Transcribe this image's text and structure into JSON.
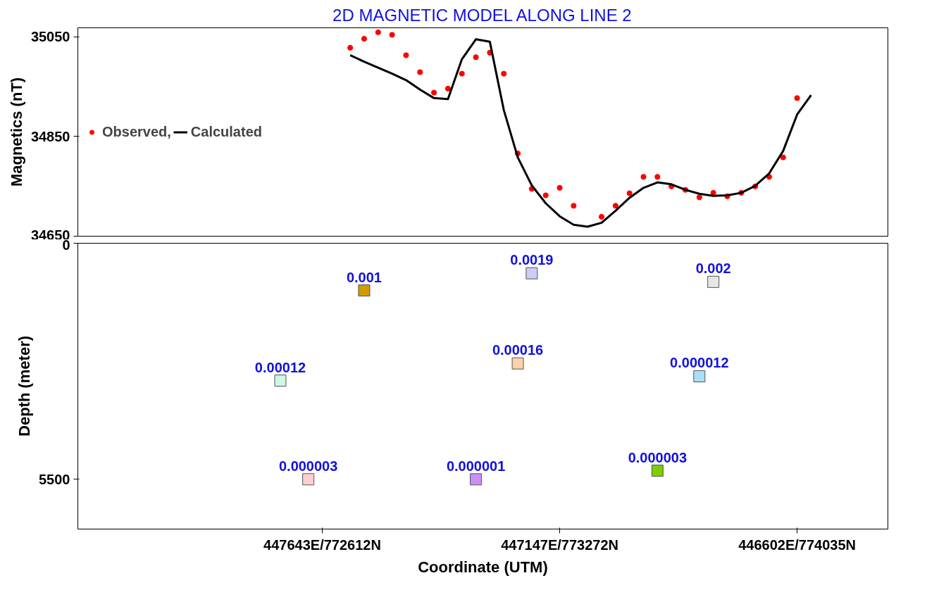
{
  "chart_data": [
    {
      "type": "scatter",
      "title": "2D MAGNETIC MODEL ALONG LINE 2",
      "ylabel": "Magnetics (nT)",
      "ylim": [
        34650,
        35068
      ],
      "yticks": [
        34650,
        34850,
        35050
      ],
      "tick_labels": "y",
      "legend": "left",
      "grid": false,
      "categories": [
        null,
        null,
        null,
        null,
        null,
        null,
        null,
        null,
        null,
        null,
        null,
        null,
        null,
        null,
        null,
        null,
        null,
        null,
        null,
        null,
        null,
        null,
        null,
        null,
        null,
        null,
        null,
        null,
        null,
        null,
        null,
        null,
        null,
        null,
        null,
        null,
        null,
        null,
        null,
        null,
        null,
        null,
        null,
        null,
        null,
        null,
        null,
        null,
        null,
        null,
        null,
        null,
        null,
        null,
        null,
        null,
        null,
        null
      ],
      "series": [
        {
          "name": "Observed,",
          "type": "scatter",
          "color": "#ff0000",
          "marker": "circle",
          "values": [
            null,
            null,
            null,
            null,
            null,
            null,
            null,
            null,
            null,
            null,
            null,
            null,
            null,
            null,
            null,
            null,
            null,
            null,
            null,
            35028,
            35046,
            35059,
            35054,
            35013,
            34979,
            34938,
            34946,
            34976,
            35009,
            35018,
            34976,
            34816,
            34745,
            34732,
            34747,
            34711,
            null,
            34689,
            34711,
            34736,
            34769,
            34769,
            34750,
            34743,
            34728,
            34737,
            34730,
            34737,
            34750,
            34769,
            34808,
            34927,
            null,
            null,
            null,
            null,
            null,
            null
          ]
        },
        {
          "name": "Calculated",
          "type": "line",
          "color": "#000000",
          "values": [
            null,
            null,
            null,
            null,
            null,
            null,
            null,
            null,
            null,
            null,
            null,
            null,
            null,
            null,
            null,
            null,
            null,
            null,
            null,
            35013,
            35000,
            34988,
            34976,
            34963,
            34944,
            34927,
            34925,
            35005,
            35045,
            35040,
            34903,
            34808,
            34752,
            34716,
            34690,
            34673,
            34669,
            34677,
            34701,
            34727,
            34747,
            34758,
            34754,
            34743,
            34735,
            34731,
            34732,
            34737,
            34751,
            34776,
            34821,
            34894,
            34933,
            null,
            null,
            null,
            null,
            null
          ]
        }
      ]
    },
    {
      "type": "scatter",
      "ylabel": "Depth (meter)",
      "xlabel": "Coordinate (UTM)",
      "ylim": [
        6660,
        0
      ],
      "yticks": [
        0,
        5500
      ],
      "grid": false,
      "categories": [
        null,
        null,
        null,
        null,
        null,
        null,
        null,
        null,
        null,
        null,
        null,
        null,
        null,
        null,
        null,
        null,
        null,
        "447643E/772612N",
        null,
        null,
        null,
        null,
        null,
        null,
        null,
        null,
        null,
        null,
        null,
        null,
        null,
        null,
        null,
        null,
        "447147E/773272N",
        null,
        null,
        null,
        null,
        null,
        null,
        null,
        null,
        null,
        null,
        null,
        null,
        null,
        null,
        null,
        null,
        "446602E/774035N",
        null,
        null,
        null,
        null,
        null,
        null
      ],
      "series": [
        {
          "marker": "square",
          "values": [
            null,
            null,
            null,
            null,
            null,
            null,
            null,
            null,
            null,
            null,
            null,
            null,
            null,
            null,
            3200,
            null,
            5500,
            null,
            null,
            null,
            1100,
            null,
            null,
            null,
            null,
            null,
            null,
            null,
            5500,
            null,
            null,
            2800,
            700,
            null,
            null,
            null,
            null,
            null,
            null,
            null,
            null,
            5300,
            null,
            null,
            3100,
            900,
            null,
            null,
            null,
            null,
            null,
            null,
            null,
            null,
            null,
            null,
            null,
            null
          ],
          "colors": [
            null,
            null,
            null,
            null,
            null,
            null,
            null,
            null,
            null,
            null,
            null,
            null,
            null,
            null,
            "#ccf7e3",
            null,
            "#fcd0d0",
            null,
            null,
            null,
            "#d09c00",
            null,
            null,
            null,
            null,
            null,
            null,
            null,
            "#c890f8",
            null,
            null,
            "#fcd2a8",
            "#ccccf5",
            null,
            null,
            null,
            null,
            null,
            null,
            null,
            null,
            "#7ccf00",
            null,
            null,
            "#a8def8",
            "#e6e6e6",
            null,
            null,
            null,
            null,
            null,
            null,
            null,
            null,
            null,
            null,
            null,
            null
          ]
        }
      ],
      "annotations": [
        "0.00012",
        "0.000003",
        "0.001",
        "0.000001",
        "0.00016",
        "0.0019",
        "0.000003",
        "0.000012",
        "0.002"
      ]
    }
  ]
}
